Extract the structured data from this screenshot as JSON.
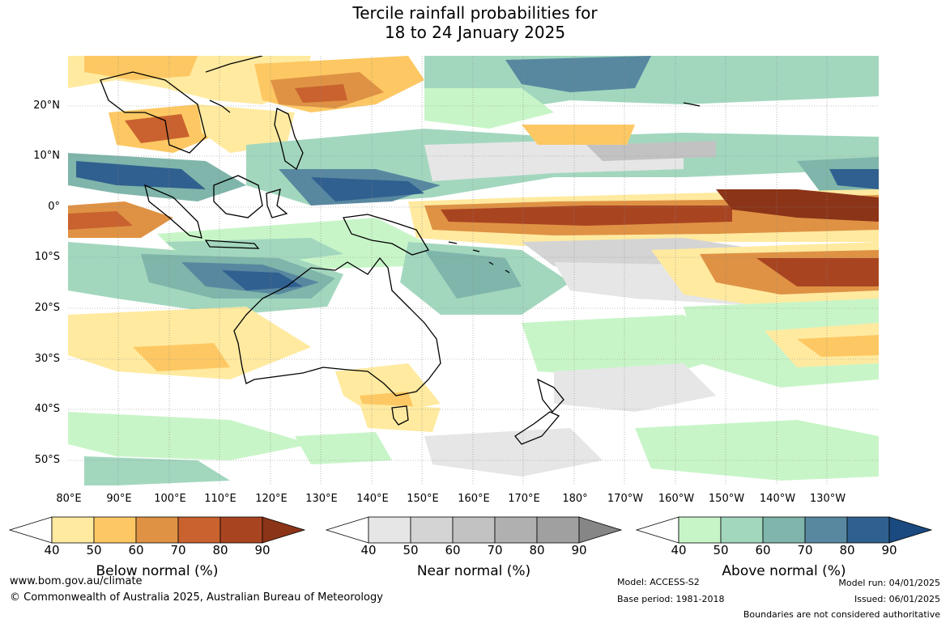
{
  "title": {
    "line1": "Tercile rainfall probabilities for",
    "line2": "18 to 24 January 2025"
  },
  "map": {
    "lat_labels": [
      "20°N",
      "10°N",
      "0°",
      "10°S",
      "20°S",
      "30°S",
      "40°S",
      "50°S"
    ],
    "lon_labels": [
      "80°E",
      "90°E",
      "100°E",
      "110°E",
      "120°E",
      "130°E",
      "140°E",
      "150°E",
      "160°E",
      "170°E",
      "180°",
      "170°W",
      "160°W",
      "150°W",
      "140°W",
      "130°W"
    ]
  },
  "legends": [
    {
      "title": "Below normal (%)",
      "ticks": [
        "40",
        "50",
        "60",
        "70",
        "80",
        "90"
      ],
      "colors": [
        "#ffeaa0",
        "#fdc863",
        "#df9244",
        "#c9622f",
        "#a94421",
        "#8c3418"
      ]
    },
    {
      "title": "Near normal (%)",
      "ticks": [
        "40",
        "50",
        "60",
        "70",
        "80",
        "90"
      ],
      "colors": [
        "#e6e6e6",
        "#d4d4d4",
        "#c2c2c2",
        "#b0b0b0",
        "#a0a0a0",
        "#868686"
      ]
    },
    {
      "title": "Above normal (%)",
      "ticks": [
        "40",
        "50",
        "60",
        "70",
        "80",
        "90"
      ],
      "colors": [
        "#c8f5c8",
        "#a2d7be",
        "#7fb5aa",
        "#5888a0",
        "#30608f",
        "#1a4a80"
      ]
    }
  ],
  "footer": {
    "website": "www.bom.gov.au/climate",
    "copyright": "© Commonwealth of Australia 2025, Australian Bureau of Meteorology",
    "model": "Model: ACCESS-S2",
    "base_period": "Base period: 1981-2018",
    "model_run": "Model run: 04/01/2025",
    "issued": "Issued: 06/01/2025",
    "disclaimer": "Boundaries are not considered authoritative"
  }
}
